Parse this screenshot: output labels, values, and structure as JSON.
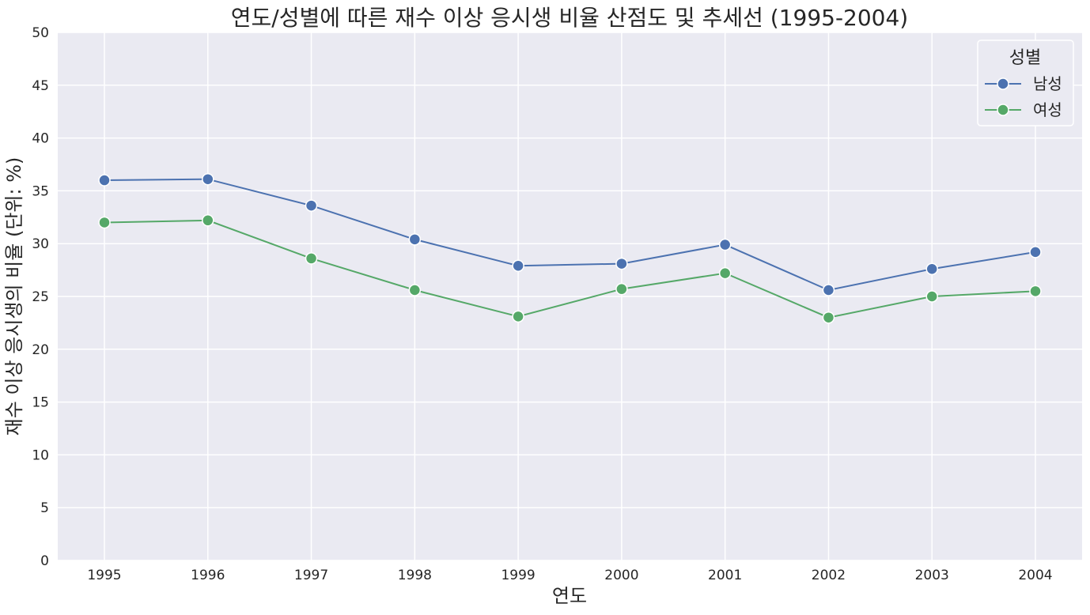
{
  "chart_data": {
    "type": "line",
    "title": "연도/성별에 따른 재수 이상 응시생 비율 산점도 및 추세선 (1995-2004)",
    "xlabel": "연도",
    "ylabel": "재수 이상 응시생의 비율 (단위: %)",
    "x": [
      "1995",
      "1996",
      "1997",
      "1998",
      "1999",
      "2000",
      "2001",
      "2002",
      "2003",
      "2004"
    ],
    "ylim": [
      0,
      50
    ],
    "yticks": [
      0,
      5,
      10,
      15,
      20,
      25,
      30,
      35,
      40,
      45,
      50
    ],
    "grid": true,
    "legend_title": "성별",
    "legend_position": "top-right",
    "series": [
      {
        "name": "남성",
        "color": "#4c72b0",
        "values": [
          36.0,
          36.1,
          33.6,
          30.4,
          27.9,
          28.1,
          29.9,
          25.6,
          27.6,
          29.2
        ]
      },
      {
        "name": "여성",
        "color": "#55a868",
        "values": [
          32.0,
          32.2,
          28.6,
          25.6,
          23.1,
          25.7,
          27.2,
          23.0,
          25.0,
          25.5
        ]
      }
    ]
  }
}
